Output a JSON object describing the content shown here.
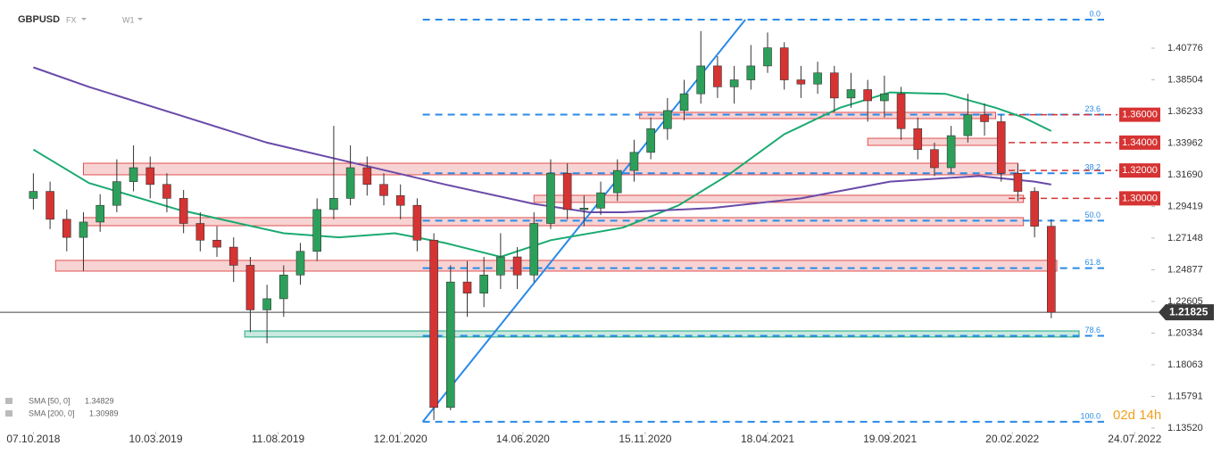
{
  "chart_data": {
    "type": "candlestick",
    "symbol": "GBPUSD",
    "market": "FX",
    "interval": "W1",
    "countdown": "02d 14h",
    "colors": {
      "up": "#2ca05a",
      "down": "#d63333"
    },
    "x": [
      0,
      3,
      6,
      9,
      12,
      15,
      18,
      21,
      24,
      27,
      30,
      33,
      36,
      39,
      42,
      45,
      48,
      51,
      54,
      57,
      60,
      63,
      66,
      69,
      72,
      75,
      78,
      81,
      84,
      87,
      90,
      93,
      96,
      99,
      102,
      105,
      108,
      111,
      114,
      117,
      120,
      123,
      126,
      129,
      132,
      135,
      138,
      141,
      144,
      147,
      150,
      153,
      156,
      159,
      162,
      165,
      168,
      171,
      174,
      177,
      180,
      183
    ],
    "open": [
      1.3,
      1.305,
      1.285,
      1.272,
      1.283,
      1.295,
      1.312,
      1.322,
      1.31,
      1.3,
      1.282,
      1.27,
      1.265,
      1.252,
      1.22,
      1.228,
      1.245,
      1.262,
      1.292,
      1.3,
      1.322,
      1.31,
      1.302,
      1.295,
      1.27,
      1.15,
      1.24,
      1.232,
      1.245,
      1.258,
      1.245,
      1.282,
      1.318,
      1.292,
      1.293,
      1.304,
      1.32,
      1.333,
      1.35,
      1.363,
      1.375,
      1.395,
      1.38,
      1.385,
      1.395,
      1.408,
      1.385,
      1.382,
      1.39,
      1.372,
      1.378,
      1.37,
      1.375,
      1.35,
      1.335,
      1.322,
      1.345,
      1.36,
      1.355,
      1.318,
      1.305,
      1.28
    ],
    "high": [
      1.318,
      1.312,
      1.292,
      1.29,
      1.303,
      1.328,
      1.338,
      1.33,
      1.318,
      1.306,
      1.29,
      1.28,
      1.272,
      1.258,
      1.238,
      1.252,
      1.268,
      1.3,
      1.352,
      1.338,
      1.33,
      1.318,
      1.31,
      1.3,
      1.275,
      1.252,
      1.255,
      1.258,
      1.275,
      1.265,
      1.29,
      1.328,
      1.325,
      1.302,
      1.312,
      1.328,
      1.342,
      1.358,
      1.372,
      1.385,
      1.42,
      1.402,
      1.395,
      1.41,
      1.419,
      1.412,
      1.395,
      1.398,
      1.395,
      1.39,
      1.385,
      1.388,
      1.38,
      1.358,
      1.34,
      1.352,
      1.375,
      1.368,
      1.36,
      1.325,
      1.308,
      1.285
    ],
    "low": [
      1.292,
      1.278,
      1.262,
      1.248,
      1.276,
      1.29,
      1.305,
      1.3,
      1.29,
      1.275,
      1.262,
      1.258,
      1.24,
      1.204,
      1.196,
      1.215,
      1.238,
      1.255,
      1.285,
      1.295,
      1.302,
      1.295,
      1.285,
      1.262,
      1.141,
      1.148,
      1.215,
      1.222,
      1.235,
      1.235,
      1.24,
      1.278,
      1.285,
      1.28,
      1.288,
      1.298,
      1.312,
      1.328,
      1.342,
      1.356,
      1.368,
      1.372,
      1.368,
      1.378,
      1.39,
      1.378,
      1.372,
      1.375,
      1.362,
      1.365,
      1.355,
      1.358,
      1.342,
      1.328,
      1.316,
      1.318,
      1.34,
      1.345,
      1.312,
      1.298,
      1.272,
      1.214
    ],
    "close": [
      1.305,
      1.285,
      1.272,
      1.283,
      1.295,
      1.312,
      1.322,
      1.31,
      1.3,
      1.282,
      1.27,
      1.265,
      1.252,
      1.22,
      1.228,
      1.245,
      1.262,
      1.292,
      1.3,
      1.322,
      1.31,
      1.302,
      1.295,
      1.27,
      1.15,
      1.24,
      1.232,
      1.245,
      1.258,
      1.245,
      1.282,
      1.318,
      1.292,
      1.293,
      1.304,
      1.32,
      1.333,
      1.35,
      1.363,
      1.375,
      1.395,
      1.38,
      1.385,
      1.395,
      1.408,
      1.385,
      1.382,
      1.39,
      1.372,
      1.378,
      1.37,
      1.375,
      1.35,
      1.335,
      1.322,
      1.345,
      1.36,
      1.355,
      1.318,
      1.305,
      1.28,
      1.21825
    ],
    "indicators": [
      {
        "name": "SMA [50, 0]",
        "last": 1.34829,
        "color": "#1aaa70",
        "x": [
          0,
          10,
          26,
          37,
          45,
          55,
          65,
          74,
          84,
          93,
          106,
          116,
          125,
          135,
          145,
          154,
          164,
          173,
          178,
          183
        ],
        "values": [
          1.335,
          1.311,
          1.292,
          1.282,
          1.275,
          1.272,
          1.275,
          1.268,
          1.258,
          1.27,
          1.279,
          1.295,
          1.317,
          1.346,
          1.365,
          1.376,
          1.375,
          1.365,
          1.358,
          1.34829
        ]
      },
      {
        "name": "SMA [200, 0]",
        "last": 1.30989,
        "color": "#6a4aa8",
        "x": [
          0,
          10,
          26,
          42,
          58,
          74,
          90,
          100,
          106,
          122,
          138,
          154,
          170,
          180,
          183
        ],
        "values": [
          1.394,
          1.38,
          1.36,
          1.34,
          1.325,
          1.31,
          1.296,
          1.29,
          1.29,
          1.293,
          1.3,
          1.312,
          1.316,
          1.312,
          1.30989
        ]
      }
    ],
    "fibonacci": {
      "anchor_x": [
        70,
        128
      ],
      "ratios": [
        "0.0",
        "23.6",
        "38.2",
        "50.0",
        "61.8",
        "78.6",
        "100.0"
      ],
      "prices": [
        1.4282,
        1.3601,
        1.318,
        1.284,
        1.2499,
        1.2014,
        1.1397
      ],
      "color": "#2a8ae8"
    },
    "levels": [
      {
        "value": 1.36,
        "label": "1.36000"
      },
      {
        "value": 1.34,
        "label": "1.34000"
      },
      {
        "value": 1.32,
        "label": "1.32000"
      },
      {
        "value": 1.3,
        "label": "1.30000"
      }
    ],
    "zones": [
      {
        "from": 9,
        "to": 177,
        "low": 1.3169,
        "high": 1.3252,
        "color": "#e05050"
      },
      {
        "from": 109,
        "to": 173,
        "low": 1.3572,
        "high": 1.3617,
        "color": "#e05050"
      },
      {
        "from": 150,
        "to": 174,
        "low": 1.338,
        "high": 1.3431,
        "color": "#e05050"
      },
      {
        "from": 90,
        "to": 178,
        "low": 1.2971,
        "high": 1.3022,
        "color": "#e05050"
      },
      {
        "from": 9,
        "to": 178,
        "low": 1.2804,
        "high": 1.2862,
        "color": "#e05050"
      },
      {
        "from": 4,
        "to": 184,
        "low": 1.2478,
        "high": 1.2555,
        "color": "#e05050"
      },
      {
        "from": 38,
        "to": 188,
        "low": 1.2005,
        "high": 1.2049,
        "color": "#20a880"
      }
    ],
    "xlim": [
      -6,
      201
    ],
    "xticks": [
      {
        "value": 0,
        "label": "07.10.2018"
      },
      {
        "value": 22,
        "label": "10.03.2019"
      },
      {
        "value": 44,
        "label": "11.08.2019"
      },
      {
        "value": 66,
        "label": "12.01.2020"
      },
      {
        "value": 88,
        "label": "14.06.2020"
      },
      {
        "value": 110,
        "label": "15.11.2020"
      },
      {
        "value": 132,
        "label": "18.04.2021"
      },
      {
        "value": 154,
        "label": "19.09.2021"
      },
      {
        "value": 176,
        "label": "20.02.2022"
      },
      {
        "value": 198,
        "label": "24.07.2022"
      }
    ],
    "ylim": [
      1.1326,
      1.4423
    ],
    "yticks": [
      1.40776,
      1.38504,
      1.36233,
      1.33962,
      {
        "value": 1.3169,
        "label": "1.31690"
      },
      1.29419,
      1.27148,
      1.24877,
      1.22605,
      1.20334,
      1.18063,
      1.15791,
      {
        "value": 1.1352,
        "label": "1.13520"
      }
    ]
  }
}
